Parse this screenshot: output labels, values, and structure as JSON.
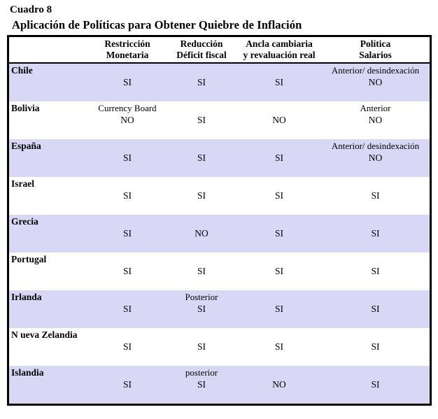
{
  "title": "Cuadro 8",
  "subtitle": "Aplicación de Políticas para Obtener Quiebre de Inflación",
  "colors": {
    "row_alt": "#d8d8f6",
    "border": "#000000",
    "text": "#000000",
    "background": "#ffffff"
  },
  "table": {
    "headers": [
      {
        "line1": "Restricción",
        "line2": "Monetaria"
      },
      {
        "line1": "Reducción",
        "line2": "Déficit fiscal"
      },
      {
        "line1": "Ancla cambiaria",
        "line2": "y revaluación real"
      },
      {
        "line1": "Política",
        "line2": "Salarios"
      }
    ],
    "rows": [
      {
        "country": "Chile",
        "cells": [
          {
            "note": "",
            "value": "SI"
          },
          {
            "note": "",
            "value": "SI"
          },
          {
            "note": "",
            "value": "SI"
          },
          {
            "note": "Anterior/ desindexación",
            "value": "NO"
          }
        ]
      },
      {
        "country": "Bolivia",
        "cells": [
          {
            "note": "Currency Board",
            "value": "NO"
          },
          {
            "note": "",
            "value": "SI"
          },
          {
            "note": "",
            "value": "NO"
          },
          {
            "note": "Anterior",
            "value": "NO"
          }
        ]
      },
      {
        "country": "España",
        "cells": [
          {
            "note": "",
            "value": "SI"
          },
          {
            "note": "",
            "value": "SI"
          },
          {
            "note": "",
            "value": "SI"
          },
          {
            "note": "Anterior/ desindexación",
            "value": "NO"
          }
        ]
      },
      {
        "country": "Israel",
        "cells": [
          {
            "note": "",
            "value": "SI"
          },
          {
            "note": "",
            "value": "SI"
          },
          {
            "note": "",
            "value": "SI"
          },
          {
            "note": "",
            "value": "SI"
          }
        ]
      },
      {
        "country": "Grecia",
        "cells": [
          {
            "note": "",
            "value": "SI"
          },
          {
            "note": "",
            "value": "NO"
          },
          {
            "note": "",
            "value": "SI"
          },
          {
            "note": "",
            "value": "SI"
          }
        ]
      },
      {
        "country": "Portugal",
        "cells": [
          {
            "note": "",
            "value": "SI"
          },
          {
            "note": "",
            "value": "SI"
          },
          {
            "note": "",
            "value": "SI"
          },
          {
            "note": "",
            "value": "SI"
          }
        ]
      },
      {
        "country": "Irlanda",
        "cells": [
          {
            "note": "",
            "value": "SI"
          },
          {
            "note": "Posterior",
            "value": "SI"
          },
          {
            "note": "",
            "value": "SI"
          },
          {
            "note": "",
            "value": "SI"
          }
        ]
      },
      {
        "country": "N ueva Zelandia",
        "cells": [
          {
            "note": "",
            "value": "SI"
          },
          {
            "note": "",
            "value": "SI"
          },
          {
            "note": "",
            "value": "SI"
          },
          {
            "note": "",
            "value": "SI"
          }
        ]
      },
      {
        "country": "Islandia",
        "cells": [
          {
            "note": "",
            "value": "SI"
          },
          {
            "note": "posterior",
            "value": "SI"
          },
          {
            "note": "",
            "value": "NO"
          },
          {
            "note": "",
            "value": "SI"
          }
        ]
      }
    ]
  }
}
